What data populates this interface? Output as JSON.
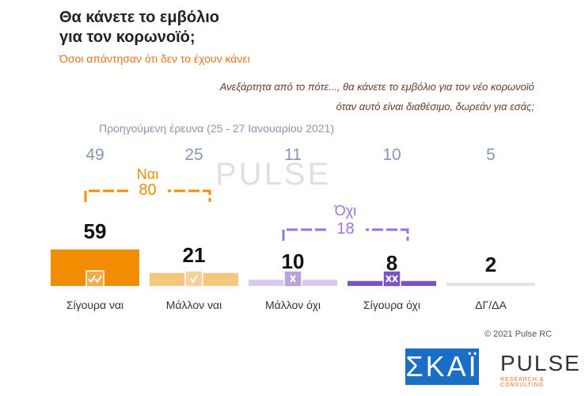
{
  "chart_data": {
    "type": "bar",
    "title": [
      "Θα κάνετε το εμβόλιο",
      "για τον κορωνοϊό;"
    ],
    "subtitle": "Όσοι απάντησαν ότι δεν το έχουν κάνει",
    "question": [
      "Ανεξάρτητα από το πότε..., θα κάνετε το εμβόλιο για τον νέο κορωνοϊό",
      "όταν αυτό είναι διαθέσιμο, δωρεάν για εσάς;"
    ],
    "categories": [
      "Σίγουρα ναι",
      "Μάλλον ναι",
      "Μάλλον όχι",
      "Σίγουρα όχι",
      "ΔΓ/ΔΑ"
    ],
    "series": [
      {
        "name": "Προηγούμενη έρευνα (25 - 27 Ιανουαρίου 2021)",
        "values": [
          49,
          25,
          11,
          10,
          5
        ]
      },
      {
        "values": [
          59,
          21,
          10,
          8,
          2
        ],
        "colors": [
          "#f28c00",
          "#f5c77e",
          "#d9c9ee",
          "#7b52c6",
          "#e3e3e3"
        ]
      }
    ],
    "groups": [
      {
        "label": "Ναι",
        "value": 80,
        "color": "#f28c00"
      },
      {
        "label": "Όχι",
        "value": 18,
        "color": "#9b72dc"
      }
    ],
    "copyright": "© 2021 Pulse RC",
    "logos": {
      "skai": "ΣΚΑΪ",
      "pulse": "PULSE",
      "pulse_sub": "RESEARCH & CONSULTING"
    }
  }
}
